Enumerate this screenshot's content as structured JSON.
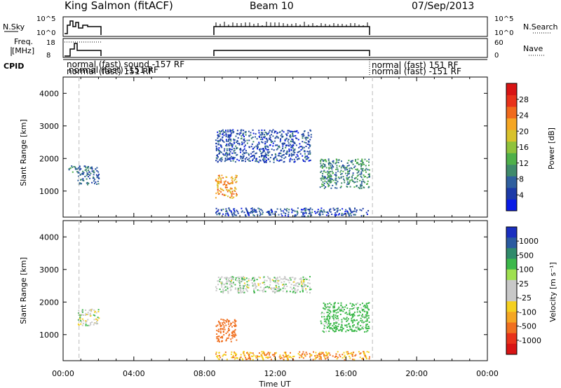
{
  "header": {
    "station": "King Salmon (fitACF)",
    "beam": "Beam 10",
    "date": "07/Sep/2013"
  },
  "strips": {
    "nsky_label": "N.Sky",
    "nsky_ticks": [
      "10^5",
      "10^0"
    ],
    "nsearch_label": "N.Search",
    "nsearch_ticks": [
      "10^5",
      "10^0"
    ],
    "freq_label_1": "Freq.",
    "freq_label_2": "[MHz]",
    "freq_ticks": [
      "18",
      "8"
    ],
    "nave_label": "Nave",
    "nave_ticks": [
      "60",
      "0"
    ],
    "cpid_label": "CPID",
    "cpid_entries": [
      {
        "text": "normal (fast) 151 RF",
        "x_hour": 0.9,
        "row": 1
      },
      {
        "text": "normal (fast) -151 RF",
        "x_hour": 0.9,
        "row": 2
      },
      {
        "text": "normal (fast) 151 RF",
        "x_hour": 17.5,
        "row": 1
      },
      {
        "text": "normal (fast) -151 RF",
        "x_hour": 17.5,
        "row": 2
      }
    ],
    "cpid_overlap_text": "normal (fast) sound -157 RF"
  },
  "chart_data": [
    {
      "type": "heatmap",
      "title": "",
      "parameter": "Power",
      "ylabel": "Slant Range [km]",
      "xlabel": "",
      "xlim_hours": [
        0,
        24
      ],
      "ylim": [
        200,
        4500
      ],
      "yticks": [
        "1000",
        "2000",
        "3000",
        "4000"
      ],
      "colorbar_label": "Power [dB]",
      "colorbar_ticks": [
        "4",
        "8",
        "12",
        "16",
        "20",
        "24",
        "28"
      ],
      "colorbar_colors": [
        "#0a1be6",
        "#1c3aa8",
        "#2f5f9e",
        "#3f8a6b",
        "#4fb04a",
        "#8fc23c",
        "#d8c22c",
        "#f5a623",
        "#f06a1c",
        "#e8321a",
        "#d81414"
      ],
      "regions": [
        {
          "x_start": 0.8,
          "x_end": 2.0,
          "range_start": 1200,
          "range_end": 1800,
          "value": 8
        },
        {
          "x_start": 0.3,
          "x_end": 0.9,
          "range_start": 1600,
          "range_end": 1800,
          "value": 10
        },
        {
          "x_start": 8.6,
          "x_end": 9.8,
          "range_start": 800,
          "range_end": 1500,
          "value": 22
        },
        {
          "x_start": 8.6,
          "x_end": 14.0,
          "range_start": 1900,
          "range_end": 2900,
          "value": 6
        },
        {
          "x_start": 14.5,
          "x_end": 17.3,
          "range_start": 1100,
          "range_end": 2000,
          "value": 10
        },
        {
          "x_start": 8.6,
          "x_end": 17.3,
          "range_start": 250,
          "range_end": 500,
          "value": 6
        }
      ]
    },
    {
      "type": "heatmap",
      "title": "",
      "parameter": "Velocity",
      "ylabel": "Slant Range [km]",
      "xlabel": "Time UT",
      "xlim_hours": [
        0,
        24
      ],
      "ylim": [
        200,
        4500
      ],
      "yticks": [
        "1000",
        "2000",
        "3000",
        "4000"
      ],
      "xticks": [
        "00:00",
        "04:00",
        "08:00",
        "12:00",
        "16:00",
        "20:00",
        "00:00"
      ],
      "colorbar_label": "Velocity [m s⁻¹]",
      "colorbar_ticks": [
        "1000",
        "500",
        "100",
        "25",
        "-25",
        "-100",
        "-500",
        "-1000"
      ],
      "colorbar_colors": [
        "#1a2fc0",
        "#2a5aa0",
        "#2f8a6b",
        "#3cb84a",
        "#9fe050",
        "#c8c8c8",
        "#c8c8c8",
        "#f5d020",
        "#f5a623",
        "#f07020",
        "#e8321a",
        "#d81414"
      ],
      "regions": [
        {
          "x_start": 0.8,
          "x_end": 2.0,
          "range_start": 1300,
          "range_end": 1800,
          "value": 0
        },
        {
          "x_start": 8.6,
          "x_end": 9.8,
          "range_start": 800,
          "range_end": 1500,
          "value": -300
        },
        {
          "x_start": 8.6,
          "x_end": 14.0,
          "range_start": 2300,
          "range_end": 2800,
          "value": 10
        },
        {
          "x_start": 14.5,
          "x_end": 17.3,
          "range_start": 1100,
          "range_end": 2000,
          "value": 60
        },
        {
          "x_start": 8.6,
          "x_end": 17.3,
          "range_start": 250,
          "range_end": 500,
          "value": -100
        }
      ]
    }
  ]
}
